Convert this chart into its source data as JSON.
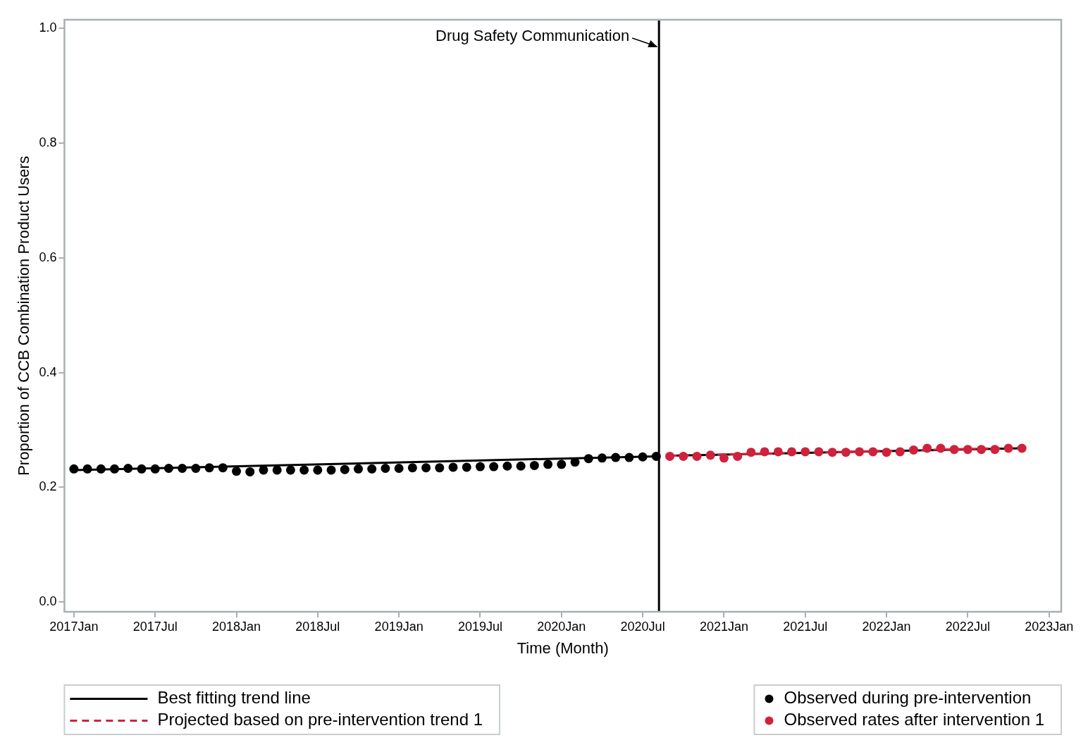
{
  "chart_data": {
    "type": "scatter",
    "xlabel": "Time (Month)",
    "ylabel": "Proportion of CCB Combination Product Users",
    "xlim": [
      "2016-12-10",
      "2023-01-28"
    ],
    "ylim": [
      -0.017,
      1.015
    ],
    "xticks": [
      {
        "value": "2017-01",
        "label": "2017Jan"
      },
      {
        "value": "2017-07",
        "label": "2017Jul"
      },
      {
        "value": "2018-01",
        "label": "2018Jan"
      },
      {
        "value": "2018-07",
        "label": "2018Jul"
      },
      {
        "value": "2019-01",
        "label": "2019Jan"
      },
      {
        "value": "2019-07",
        "label": "2019Jul"
      },
      {
        "value": "2020-01",
        "label": "2020Jan"
      },
      {
        "value": "2020-07",
        "label": "2020Jul"
      },
      {
        "value": "2021-01",
        "label": "2021Jan"
      },
      {
        "value": "2021-07",
        "label": "2021Jul"
      },
      {
        "value": "2022-01",
        "label": "2022Jan"
      },
      {
        "value": "2022-07",
        "label": "2022Jul"
      },
      {
        "value": "2023-01",
        "label": "2023Jan"
      }
    ],
    "yticks": [
      {
        "value": 0,
        "label": "0.0"
      },
      0.2,
      0.4,
      0.6,
      0.8,
      {
        "value": 1,
        "label": "1.0"
      }
    ],
    "grid": false,
    "legend": "bottom",
    "ref_lines": [
      {
        "axis": "x",
        "value": "2020-08-07",
        "label": "Drug Safety Communication",
        "color": "#000000"
      }
    ],
    "series": [
      {
        "name": "Best fitting trend line",
        "type": "line",
        "marker": "none",
        "line_style": "solid",
        "color": "#000000",
        "x": [
          "2017-01",
          "2020-08"
        ],
        "values": [
          0.23,
          0.254
        ]
      },
      {
        "name": "Projected based on pre-intervention trend 1",
        "type": "line",
        "marker": "none",
        "line_style": "dashed",
        "color": "#d0223d",
        "x": [
          "2020-09",
          "2022-11"
        ],
        "values": [
          0.255,
          0.269
        ]
      },
      {
        "name": "Observed during pre-intervention",
        "marker": "circle",
        "color": "#000000",
        "x": [
          "2017-01",
          "2017-02",
          "2017-03",
          "2017-04",
          "2017-05",
          "2017-06",
          "2017-07",
          "2017-08",
          "2017-09",
          "2017-10",
          "2017-11",
          "2017-12",
          "2018-01",
          "2018-02",
          "2018-03",
          "2018-04",
          "2018-05",
          "2018-06",
          "2018-07",
          "2018-08",
          "2018-09",
          "2018-10",
          "2018-11",
          "2018-12",
          "2019-01",
          "2019-02",
          "2019-03",
          "2019-04",
          "2019-05",
          "2019-06",
          "2019-07",
          "2019-08",
          "2019-09",
          "2019-10",
          "2019-11",
          "2019-12",
          "2020-01",
          "2020-02",
          "2020-03",
          "2020-04",
          "2020-05",
          "2020-06",
          "2020-07",
          "2020-08"
        ],
        "values": [
          0.232,
          0.232,
          0.232,
          0.232,
          0.233,
          0.232,
          0.232,
          0.233,
          0.233,
          0.233,
          0.234,
          0.234,
          0.228,
          0.227,
          0.23,
          0.23,
          0.23,
          0.23,
          0.23,
          0.23,
          0.231,
          0.232,
          0.232,
          0.233,
          0.233,
          0.234,
          0.234,
          0.234,
          0.235,
          0.235,
          0.236,
          0.236,
          0.237,
          0.237,
          0.238,
          0.24,
          0.24,
          0.244,
          0.25,
          0.251,
          0.252,
          0.252,
          0.253,
          0.254
        ]
      },
      {
        "name": "Observed rates after intervention 1",
        "marker": "circle",
        "color": "#d0223d",
        "x": [
          "2020-09",
          "2020-10",
          "2020-11",
          "2020-12",
          "2021-01",
          "2021-02",
          "2021-03",
          "2021-04",
          "2021-05",
          "2021-06",
          "2021-07",
          "2021-08",
          "2021-09",
          "2021-10",
          "2021-11",
          "2021-12",
          "2022-01",
          "2022-02",
          "2022-03",
          "2022-04",
          "2022-05",
          "2022-06",
          "2022-07",
          "2022-08",
          "2022-09",
          "2022-10",
          "2022-11"
        ],
        "values": [
          0.254,
          0.254,
          0.254,
          0.256,
          0.251,
          0.254,
          0.261,
          0.262,
          0.262,
          0.262,
          0.262,
          0.262,
          0.261,
          0.261,
          0.262,
          0.262,
          0.261,
          0.262,
          0.265,
          0.268,
          0.268,
          0.266,
          0.266,
          0.266,
          0.266,
          0.268,
          0.268
        ]
      },
      {
        "type": "line",
        "marker": "none",
        "line_style": "solid",
        "color": "#000000",
        "x": [
          "2020-09",
          "2022-11"
        ],
        "values": [
          0.255,
          0.268
        ]
      }
    ]
  }
}
